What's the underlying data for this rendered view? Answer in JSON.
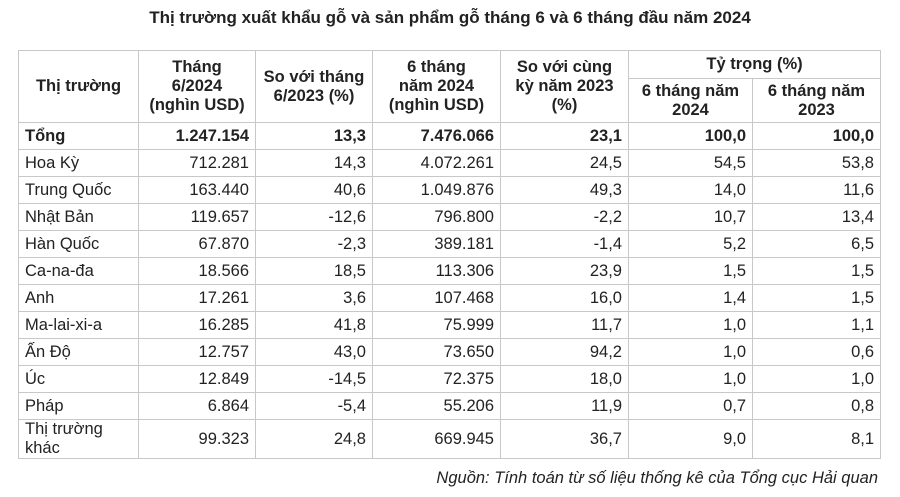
{
  "title": "Thị trường xuất khẩu gỗ và sản phẩm gỗ tháng 6 và 6 tháng đầu năm 2024",
  "table": {
    "header": {
      "market": "Thị trường",
      "month": "Tháng\n6/2024\n(nghìn USD)",
      "vs_month": "So với tháng\n6/2023 (%)",
      "six_months": "6 tháng\nnăm 2024\n(nghìn USD)",
      "vs_period": "So với cùng\nkỳ năm 2023\n(%)",
      "share": "Tỷ trọng (%)",
      "share_2024": "6 tháng năm\n2024",
      "share_2023": "6 tháng năm\n2023"
    },
    "rows": [
      [
        "Tổng",
        "1.247.154",
        "13,3",
        "7.476.066",
        "23,1",
        "100,0",
        "100,0"
      ],
      [
        "Hoa Kỳ",
        "712.281",
        "14,3",
        "4.072.261",
        "24,5",
        "54,5",
        "53,8"
      ],
      [
        "Trung Quốc",
        "163.440",
        "40,6",
        "1.049.876",
        "49,3",
        "14,0",
        "11,6"
      ],
      [
        "Nhật Bản",
        "119.657",
        "-12,6",
        "796.800",
        "-2,2",
        "10,7",
        "13,4"
      ],
      [
        "Hàn Quốc",
        "67.870",
        "-2,3",
        "389.181",
        "-1,4",
        "5,2",
        "6,5"
      ],
      [
        "Ca-na-đa",
        "18.566",
        "18,5",
        "113.306",
        "23,9",
        "1,5",
        "1,5"
      ],
      [
        "Anh",
        "17.261",
        "3,6",
        "107.468",
        "16,0",
        "1,4",
        "1,5"
      ],
      [
        "Ma-lai-xi-a",
        "16.285",
        "41,8",
        "75.999",
        "11,7",
        "1,0",
        "1,1"
      ],
      [
        "Ấn Độ",
        "12.757",
        "43,0",
        "73.650",
        "94,2",
        "1,0",
        "0,6"
      ],
      [
        "Úc",
        "12.849",
        "-14,5",
        "72.375",
        "18,0",
        "1,0",
        "1,0"
      ],
      [
        "Pháp",
        "6.864",
        "-5,4",
        "55.206",
        "11,9",
        "0,7",
        "0,8"
      ],
      [
        "Thị trường khác",
        "99.323",
        "24,8",
        "669.945",
        "36,7",
        "9,0",
        "8,1"
      ]
    ]
  },
  "source": "Nguồn: Tính toán từ số liệu thống kê của Tổng cục Hải quan"
}
